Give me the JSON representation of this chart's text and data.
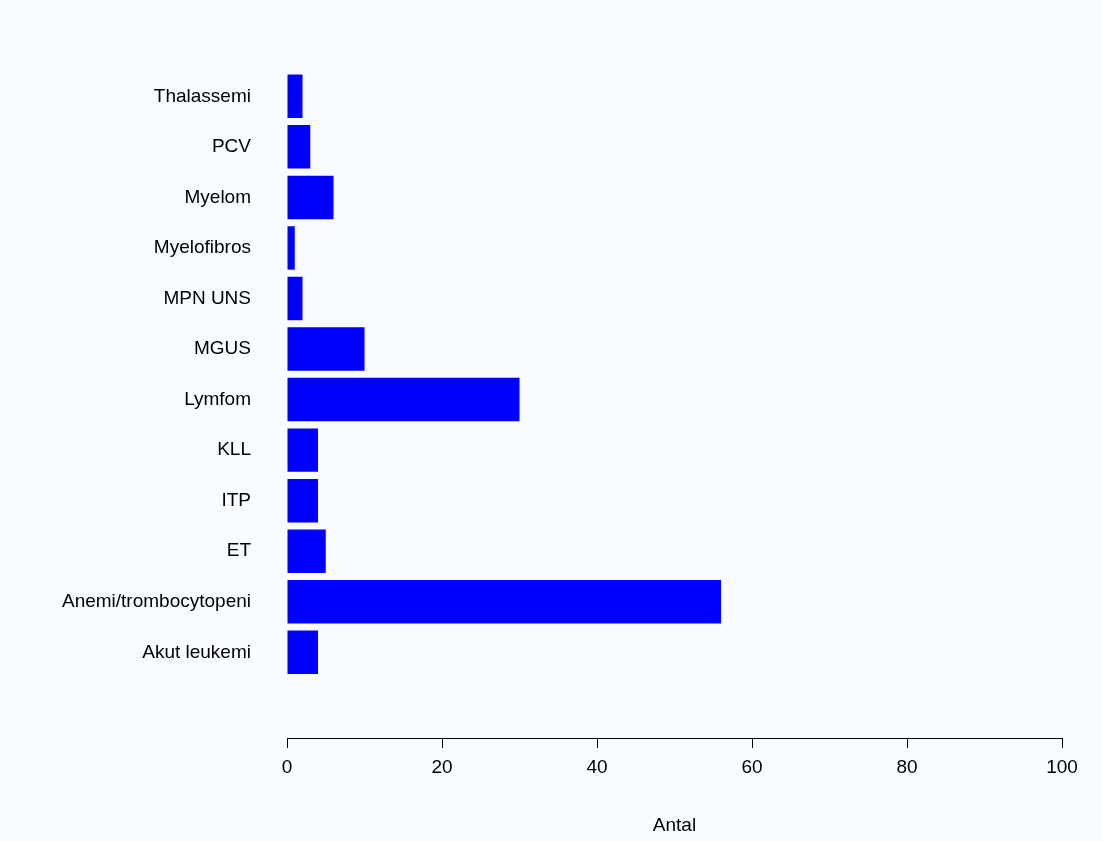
{
  "chart_data": {
    "type": "bar",
    "orientation": "horizontal",
    "xlabel": "Antal",
    "categories": [
      "Thalassemi",
      "PCV",
      "Myelom",
      "Myelofibros",
      "MPN UNS",
      "MGUS",
      "Lymfom",
      "KLL",
      "ITP",
      "ET",
      "Anemi/trombocytopeni",
      "Akut leukemi"
    ],
    "values": [
      2,
      3,
      6,
      1,
      2,
      10,
      30,
      4,
      4,
      5,
      56,
      4
    ],
    "color": "#0000ff",
    "xlim": [
      0,
      100
    ],
    "xticks": [
      0,
      20,
      40,
      60,
      80,
      100
    ]
  }
}
